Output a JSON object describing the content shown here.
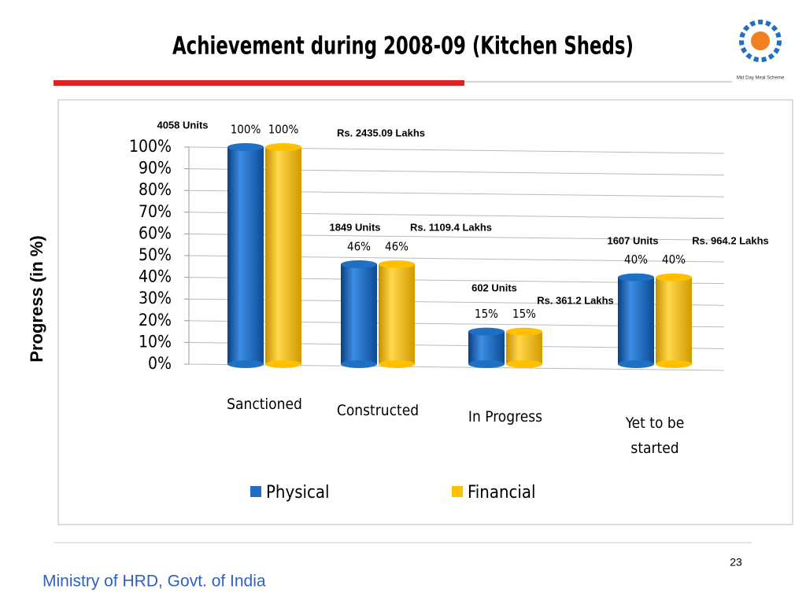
{
  "slide": {
    "footer": "Ministry of HRD, Govt. of India",
    "page_number": "23",
    "logo_text": "Mid Day Meal Scheme"
  },
  "chart_data": {
    "type": "bar",
    "title": "Achievement during 2008-09 (Kitchen Sheds)",
    "y_label": "Progress (in %)",
    "categories": [
      "Sanctioned",
      "Constructed",
      "In Progress",
      "Yet to be started"
    ],
    "series": [
      {
        "name": "Physical",
        "color": "#1f6fc5",
        "values": [
          100,
          46,
          15,
          40
        ],
        "value_labels": [
          "100%",
          "46%",
          "15%",
          "40%"
        ]
      },
      {
        "name": "Financial",
        "color": "#ffc000",
        "values": [
          100,
          46,
          15,
          40
        ],
        "value_labels": [
          "100%",
          "46%",
          "15%",
          "40%"
        ]
      }
    ],
    "annotations": [
      "4058 Units",
      "Rs. 2435.09 Lakhs",
      "1849 Units",
      "Rs. 1109.4 Lakhs",
      "602 Units",
      "Rs. 361.2 Lakhs",
      "1607 Units",
      "Rs. 964.2 Lakhs"
    ],
    "ylim": [
      0,
      100
    ],
    "yticks": [
      {
        "value": 0,
        "label": "0%"
      },
      {
        "value": 10,
        "label": "10%"
      },
      {
        "value": 20,
        "label": "20%"
      },
      {
        "value": 30,
        "label": "30%"
      },
      {
        "value": 40,
        "label": "40%"
      },
      {
        "value": 50,
        "label": "50%"
      },
      {
        "value": 60,
        "label": "60%"
      },
      {
        "value": 70,
        "label": "70%"
      },
      {
        "value": 80,
        "label": "80%"
      },
      {
        "value": 90,
        "label": "90%"
      },
      {
        "value": 100,
        "label": "100%"
      }
    ],
    "grid": true,
    "legend": "bottom"
  }
}
